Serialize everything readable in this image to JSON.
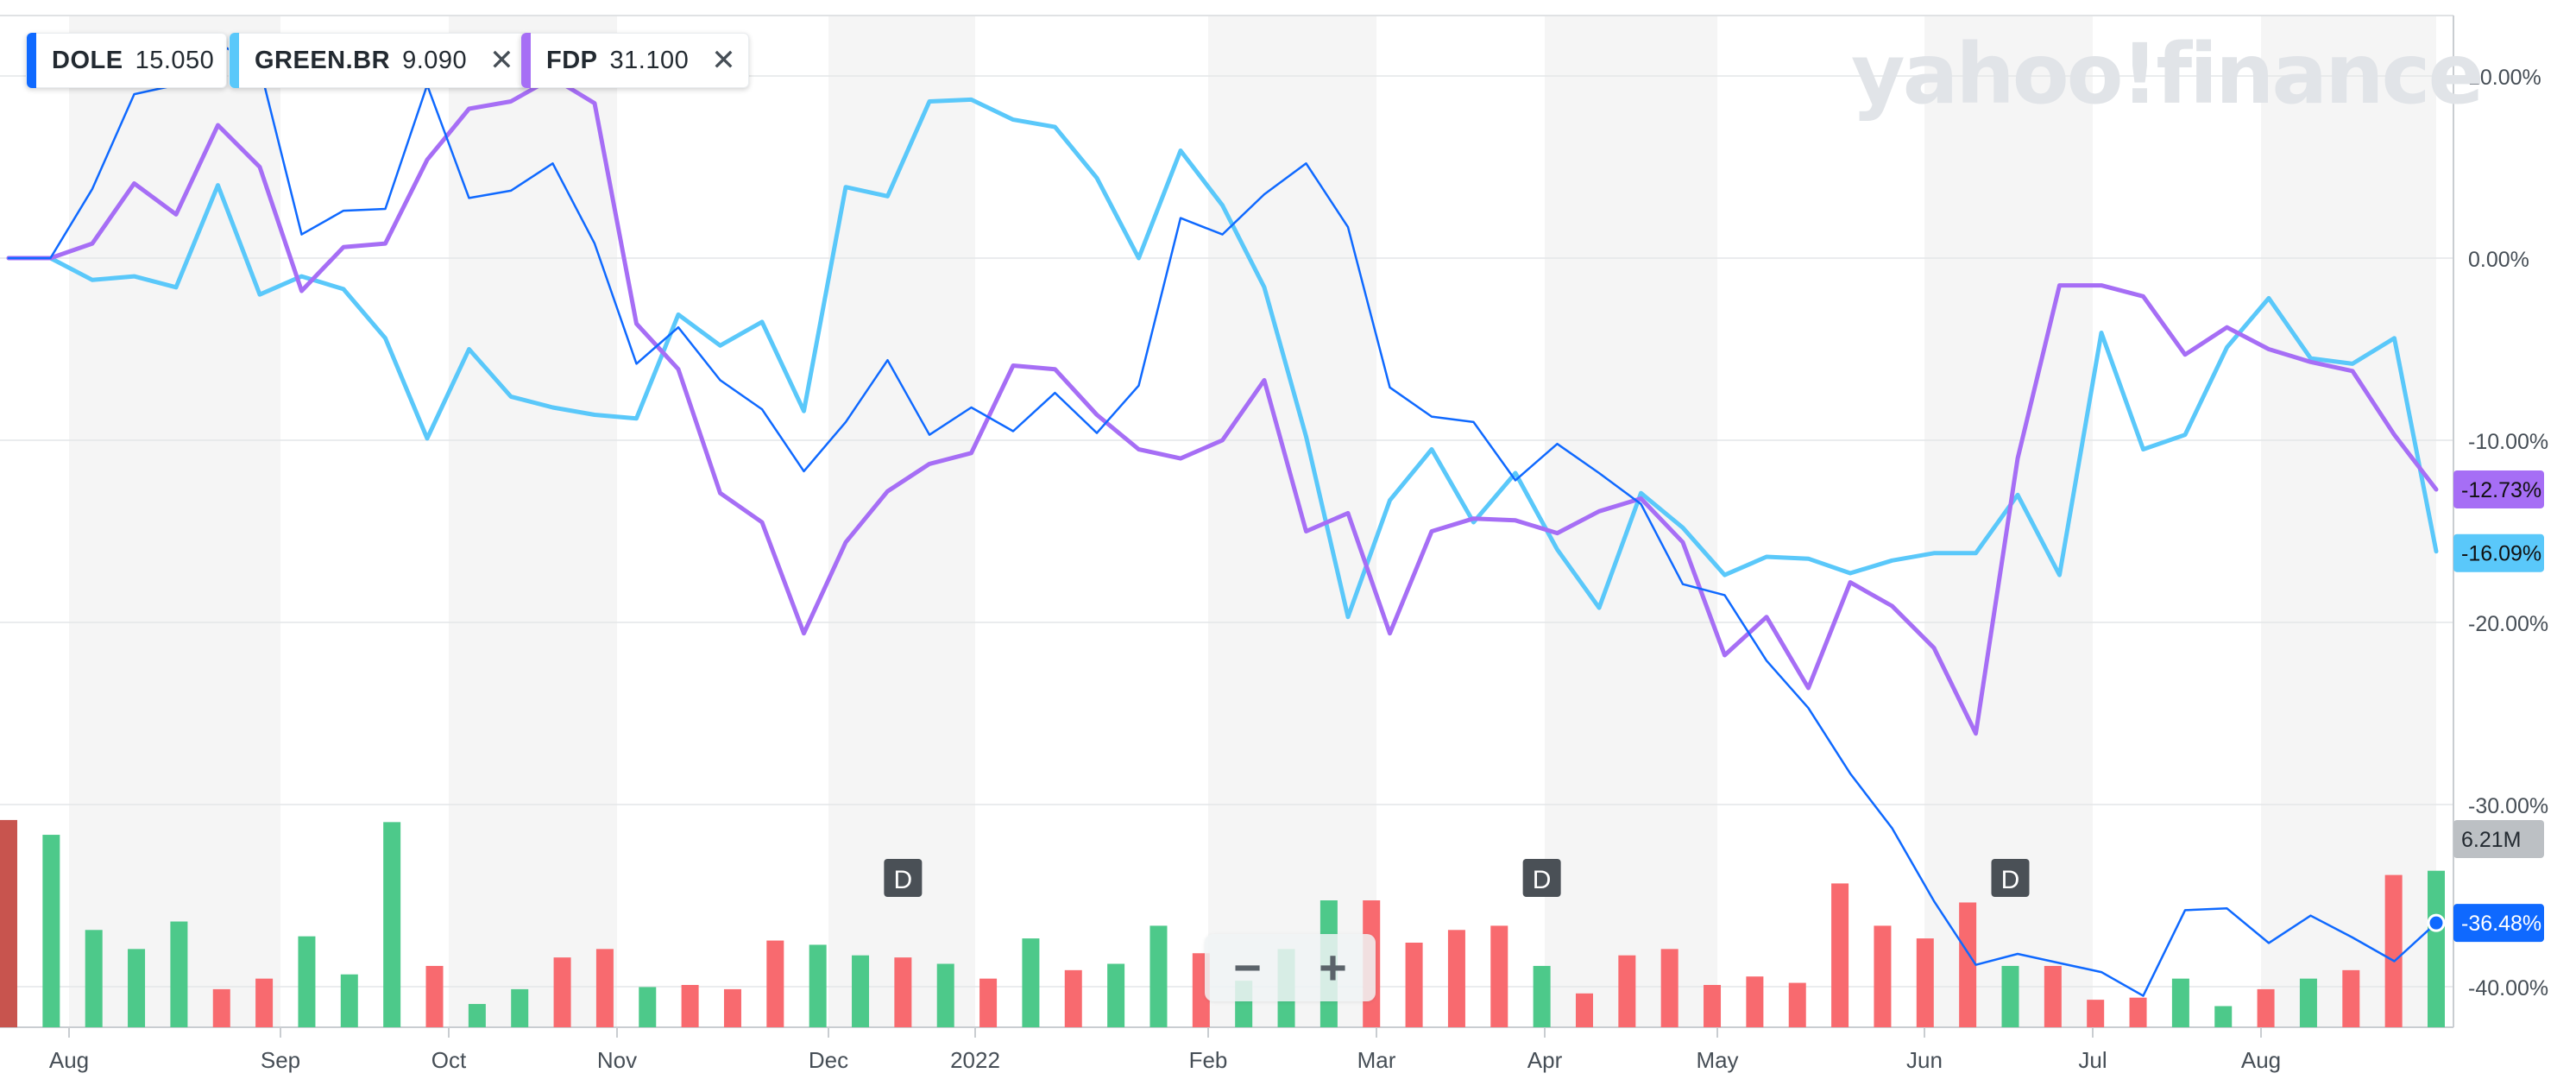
{
  "legend": [
    {
      "symbol": "DOLE",
      "price": "15.050",
      "color": "#0f69ff",
      "removable": false
    },
    {
      "symbol": "GREEN.BR",
      "price": "9.090",
      "color": "#5ac8fa",
      "removable": true
    },
    {
      "symbol": "FDP",
      "price": "31.100",
      "color": "#a66ef5",
      "removable": true
    }
  ],
  "watermark": "yahoo!finance",
  "zoom": {
    "minus": "−",
    "plus": "+"
  },
  "chart_data": {
    "type": "line",
    "x_tick_labels": [
      "Aug",
      "Sep",
      "Oct",
      "Nov",
      "Dec",
      "2022",
      "Feb",
      "Mar",
      "Apr",
      "May",
      "Jun",
      "Jul",
      "Aug"
    ],
    "y_tick_labels": [
      "10.00%",
      "0.00%",
      "-10.00%",
      "-20.00%",
      "-30.00%",
      "-40.00%"
    ],
    "ylim": [
      -42,
      13.5
    ],
    "grid": true,
    "points": 59,
    "series": [
      {
        "name": "DOLE",
        "color": "#0f69ff",
        "stroke": "thin",
        "end_label": "-36.48%",
        "values": [
          0,
          0,
          3.8,
          9,
          9.5,
          11.8,
          10.5,
          1.3,
          2.6,
          2.7,
          9.5,
          3.3,
          3.7,
          5.2,
          0.8,
          -5.8,
          -3.8,
          -6.7,
          -8.3,
          -11.7,
          -9,
          -5.6,
          -9.7,
          -8.2,
          -9.5,
          -7.4,
          -9.6,
          -7,
          2.2,
          1.3,
          3.5,
          5.2,
          1.7,
          -7.1,
          -8.7,
          -9,
          -12.2,
          -10.2,
          -11.8,
          -13.5,
          -17.9,
          -18.5,
          -22.1,
          -24.7,
          -28.3,
          -31.3,
          -35.3,
          -38.8,
          -38.2,
          -38.7,
          -39.2,
          -40.5,
          -35.8,
          -35.7,
          -37.6,
          -36.1,
          -37.3,
          -38.6,
          -36.5
        ]
      },
      {
        "name": "GREEN.BR",
        "color": "#5ac8fa",
        "stroke": "thick",
        "end_label": "-16.09%",
        "values": [
          0,
          0,
          -1.2,
          -1,
          -1.6,
          4,
          -2,
          -1,
          -1.7,
          -4.4,
          -9.9,
          -5,
          -7.6,
          -8.2,
          -8.6,
          -8.8,
          -3.1,
          -4.8,
          -3.5,
          -8.4,
          3.9,
          3.4,
          8.6,
          8.7,
          7.6,
          7.2,
          4.4,
          0,
          5.9,
          2.9,
          -1.6,
          -9.8,
          -19.7,
          -13.3,
          -10.5,
          -14.5,
          -11.8,
          -16,
          -19.2,
          -12.9,
          -14.8,
          -17.4,
          -16.4,
          -16.5,
          -17.3,
          -16.6,
          -16.2,
          -16.2,
          -13,
          -17.4,
          -4.1,
          -10.5,
          -9.7,
          -4.9,
          -2.2,
          -5.5,
          -5.8,
          -4.4,
          -16.1
        ]
      },
      {
        "name": "FDP",
        "color": "#a66ef5",
        "stroke": "thick",
        "end_label": "-12.73%",
        "values": [
          0,
          0,
          0.8,
          4.1,
          2.4,
          7.3,
          5,
          -1.8,
          0.6,
          0.8,
          5.4,
          8.2,
          8.6,
          9.9,
          8.5,
          -3.6,
          -6.1,
          -12.9,
          -14.5,
          -20.6,
          -15.6,
          -12.8,
          -11.3,
          -10.7,
          -5.9,
          -6.1,
          -8.6,
          -10.5,
          -11,
          -10,
          -6.7,
          -15,
          -14,
          -20.6,
          -15,
          -14.3,
          -14.4,
          -15.1,
          -13.9,
          -13.2,
          -15.6,
          -21.8,
          -19.7,
          -23.6,
          -17.8,
          -19.1,
          -21.4,
          -26.1,
          -11,
          -1.5,
          -1.5,
          -2.1,
          -5.3,
          -3.8,
          -5,
          -5.7,
          -6.2,
          -9.7,
          -12.7
        ]
      }
    ],
    "volume": {
      "last_label": "6.21M",
      "bars": [
        {
          "v": 0.98,
          "c": "down"
        },
        {
          "v": 0.91,
          "c": "up"
        },
        {
          "v": 0.46,
          "c": "up"
        },
        {
          "v": 0.37,
          "c": "up"
        },
        {
          "v": 0.5,
          "c": "up"
        },
        {
          "v": 0.18,
          "c": "down"
        },
        {
          "v": 0.23,
          "c": "down"
        },
        {
          "v": 0.43,
          "c": "up"
        },
        {
          "v": 0.25,
          "c": "up"
        },
        {
          "v": 0.97,
          "c": "up"
        },
        {
          "v": 0.29,
          "c": "down"
        },
        {
          "v": 0.11,
          "c": "up"
        },
        {
          "v": 0.18,
          "c": "up"
        },
        {
          "v": 0.33,
          "c": "down"
        },
        {
          "v": 0.37,
          "c": "down"
        },
        {
          "v": 0.19,
          "c": "up"
        },
        {
          "v": 0.2,
          "c": "down"
        },
        {
          "v": 0.18,
          "c": "down"
        },
        {
          "v": 0.41,
          "c": "down"
        },
        {
          "v": 0.39,
          "c": "up"
        },
        {
          "v": 0.34,
          "c": "up"
        },
        {
          "v": 0.33,
          "c": "down"
        },
        {
          "v": 0.3,
          "c": "up"
        },
        {
          "v": 0.23,
          "c": "down"
        },
        {
          "v": 0.42,
          "c": "up"
        },
        {
          "v": 0.27,
          "c": "down"
        },
        {
          "v": 0.3,
          "c": "up"
        },
        {
          "v": 0.48,
          "c": "up"
        },
        {
          "v": 0.35,
          "c": "down"
        },
        {
          "v": 0.22,
          "c": "up"
        },
        {
          "v": 0.37,
          "c": "up"
        },
        {
          "v": 0.6,
          "c": "up"
        },
        {
          "v": 0.6,
          "c": "down"
        },
        {
          "v": 0.4,
          "c": "down"
        },
        {
          "v": 0.46,
          "c": "down"
        },
        {
          "v": 0.48,
          "c": "down"
        },
        {
          "v": 0.29,
          "c": "up"
        },
        {
          "v": 0.16,
          "c": "down"
        },
        {
          "v": 0.34,
          "c": "down"
        },
        {
          "v": 0.37,
          "c": "down"
        },
        {
          "v": 0.2,
          "c": "down"
        },
        {
          "v": 0.24,
          "c": "down"
        },
        {
          "v": 0.21,
          "c": "down"
        },
        {
          "v": 0.68,
          "c": "down"
        },
        {
          "v": 0.48,
          "c": "down"
        },
        {
          "v": 0.42,
          "c": "down"
        },
        {
          "v": 0.59,
          "c": "down"
        },
        {
          "v": 0.29,
          "c": "up"
        },
        {
          "v": 0.29,
          "c": "down"
        },
        {
          "v": 0.13,
          "c": "down"
        },
        {
          "v": 0.14,
          "c": "down"
        },
        {
          "v": 0.23,
          "c": "up"
        },
        {
          "v": 0.1,
          "c": "up"
        },
        {
          "v": 0.18,
          "c": "down"
        },
        {
          "v": 0.23,
          "c": "up"
        },
        {
          "v": 0.27,
          "c": "down"
        },
        {
          "v": 0.72,
          "c": "down"
        },
        {
          "v": 0.74,
          "c": "up"
        }
      ]
    },
    "dividend_markers": [
      {
        "label": "D",
        "index": 21
      },
      {
        "label": "D",
        "index": 36
      },
      {
        "label": "D",
        "index": 47
      }
    ]
  }
}
